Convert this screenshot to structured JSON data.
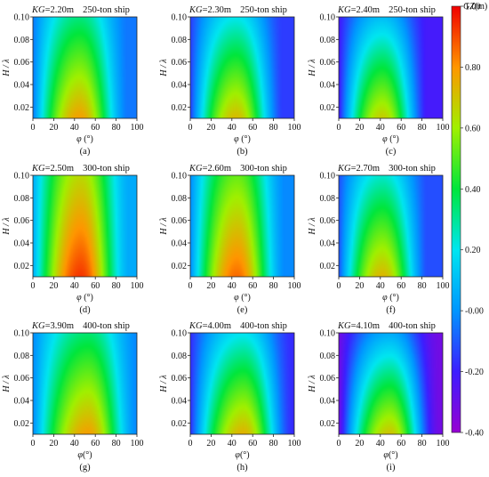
{
  "figure": {
    "colorbar": {
      "title": "GZ(m)",
      "ticks": [
        "1.00",
        "0.80",
        "0.60",
        "0.40",
        "0.20",
        "-0.00",
        "-0.20",
        "-0.40"
      ]
    }
  },
  "chart_data": [
    {
      "type": "heatmap",
      "panel": "(a)",
      "kg": "KG=2.20m",
      "ship": "250-ton ship",
      "xlabel": "φ (°)",
      "ylabel": "H / λ",
      "xticks": [
        "0",
        "20",
        "40",
        "60",
        "80",
        "100"
      ],
      "yticks": [
        "0.02",
        "0.04",
        "0.06",
        "0.08",
        "0.10"
      ],
      "xlim": [
        0,
        100
      ],
      "ylim": [
        0.01,
        0.1
      ],
      "clim": [
        -0.4,
        1.0
      ],
      "value_range": [
        -0.05,
        0.78
      ],
      "peak_phi": 45,
      "low_at_max_wave": 0.45,
      "steepness": 1.0
    },
    {
      "type": "heatmap",
      "panel": "(b)",
      "kg": "KG=2.30m",
      "ship": "250-ton ship",
      "xlabel": "φ (°)",
      "ylabel": "H / λ",
      "xticks": [
        "0",
        "20",
        "40",
        "60",
        "80",
        "100"
      ],
      "yticks": [
        "0.02",
        "0.04",
        "0.06",
        "0.08",
        "0.10"
      ],
      "xlim": [
        0,
        100
      ],
      "ylim": [
        0.01,
        0.1
      ],
      "clim": [
        -0.4,
        1.0
      ],
      "value_range": [
        -0.15,
        0.72
      ],
      "peak_phi": 44,
      "low_at_max_wave": 0.4,
      "steepness": 1.0
    },
    {
      "type": "heatmap",
      "panel": "(c)",
      "kg": "KG=2.40m",
      "ship": "250-ton ship",
      "xlabel": "φ (°)",
      "ylabel": "H / λ",
      "xticks": [
        "0",
        "20",
        "40",
        "60",
        "80",
        "100"
      ],
      "yticks": [
        "0.02",
        "0.04",
        "0.06",
        "0.08",
        "0.10"
      ],
      "xlim": [
        0,
        100
      ],
      "ylim": [
        0.01,
        0.1
      ],
      "clim": [
        -0.4,
        1.0
      ],
      "value_range": [
        -0.22,
        0.68
      ],
      "peak_phi": 42,
      "low_at_max_wave": 0.35,
      "steepness": 1.0
    },
    {
      "type": "heatmap",
      "panel": "(d)",
      "kg": "KG=2.50m",
      "ship": "300-ton ship",
      "xlabel": "φ (°)",
      "ylabel": "H / λ",
      "xticks": [
        "0",
        "20",
        "40",
        "60",
        "80",
        "100"
      ],
      "yticks": [
        "0.02",
        "0.04",
        "0.06",
        "0.08",
        "0.10"
      ],
      "xlim": [
        0,
        100
      ],
      "ylim": [
        0.01,
        0.1
      ],
      "clim": [
        -0.4,
        1.0
      ],
      "value_range": [
        0.05,
        0.93
      ],
      "peak_phi": 46,
      "low_at_max_wave": 0.68,
      "steepness": 1.0
    },
    {
      "type": "heatmap",
      "panel": "(e)",
      "kg": "KG=2.60m",
      "ship": "300-ton ship",
      "xlabel": "φ (°)",
      "ylabel": "H / λ",
      "xticks": [
        "0",
        "20",
        "40",
        "60",
        "80",
        "100"
      ],
      "yticks": [
        "0.02",
        "0.04",
        "0.06",
        "0.08",
        "0.10"
      ],
      "xlim": [
        0,
        100
      ],
      "ylim": [
        0.01,
        0.1
      ],
      "clim": [
        -0.4,
        1.0
      ],
      "value_range": [
        -0.02,
        0.86
      ],
      "peak_phi": 45,
      "low_at_max_wave": 0.62,
      "steepness": 1.0
    },
    {
      "type": "heatmap",
      "panel": "(f)",
      "kg": "KG=2.70m",
      "ship": "300-ton ship",
      "xlabel": "φ (°)",
      "ylabel": "H / λ",
      "xticks": [
        "0",
        "20",
        "40",
        "60",
        "80",
        "100"
      ],
      "yticks": [
        "0.02",
        "0.04",
        "0.06",
        "0.08",
        "0.10"
      ],
      "xlim": [
        0,
        100
      ],
      "ylim": [
        0.01,
        0.1
      ],
      "clim": [
        -0.4,
        1.0
      ],
      "value_range": [
        -0.12,
        0.73
      ],
      "peak_phi": 42,
      "low_at_max_wave": 0.42,
      "steepness": 1.0
    },
    {
      "type": "heatmap",
      "panel": "(g)",
      "kg": "KG=3.90m",
      "ship": "400-ton ship",
      "xlabel": "φ(°)",
      "ylabel": "H / λ",
      "xticks": [
        "0",
        "20",
        "40",
        "60",
        "80",
        "100"
      ],
      "yticks": [
        "0.02",
        "0.04",
        "0.06",
        "0.08",
        "0.10"
      ],
      "xlim": [
        0,
        100
      ],
      "ylim": [
        0.01,
        0.1
      ],
      "clim": [
        -0.4,
        1.0
      ],
      "value_range": [
        -0.02,
        0.78
      ],
      "peak_phi": 53,
      "low_at_max_wave": 0.45,
      "steepness": 1.0
    },
    {
      "type": "heatmap",
      "panel": "(h)",
      "kg": "KG=4.00m",
      "ship": "400-ton ship",
      "xlabel": "φ(°)",
      "ylabel": "H / λ",
      "xticks": [
        "0",
        "20",
        "40",
        "60",
        "80",
        "100"
      ],
      "yticks": [
        "0.02",
        "0.04",
        "0.06",
        "0.08",
        "0.10"
      ],
      "xlim": [
        0,
        100
      ],
      "ylim": [
        0.01,
        0.1
      ],
      "clim": [
        -0.4,
        1.0
      ],
      "value_range": [
        -0.18,
        0.74
      ],
      "peak_phi": 51,
      "low_at_max_wave": 0.4,
      "steepness": 1.0
    },
    {
      "type": "heatmap",
      "panel": "(i)",
      "kg": "KG=4.10m",
      "ship": "400-ton ship",
      "xlabel": "φ(°)",
      "ylabel": "H / λ",
      "xticks": [
        "0",
        "20",
        "40",
        "60",
        "80",
        "100"
      ],
      "yticks": [
        "0.02",
        "0.04",
        "0.06",
        "0.08",
        "0.10"
      ],
      "xlim": [
        0,
        100
      ],
      "ylim": [
        0.01,
        0.1
      ],
      "clim": [
        -0.4,
        1.0
      ],
      "value_range": [
        -0.32,
        0.7
      ],
      "peak_phi": 49,
      "low_at_max_wave": 0.36,
      "steepness": 1.0
    }
  ]
}
